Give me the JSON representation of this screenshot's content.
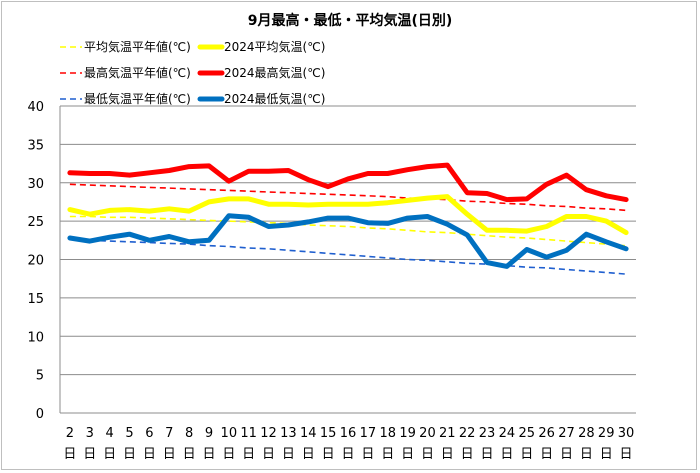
{
  "chart_data": {
    "type": "line",
    "title": "9月最高・最低・平均気温(日別)",
    "xlabel": "",
    "ylabel": "",
    "ylim": [
      0,
      40
    ],
    "yticks": [
      0,
      5,
      10,
      15,
      20,
      25,
      30,
      35,
      40
    ],
    "grid": "horizontal",
    "legend_position": "top-left",
    "day_suffix": "日",
    "categories": [
      "2",
      "3",
      "4",
      "5",
      "6",
      "7",
      "8",
      "9",
      "10",
      "11",
      "12",
      "13",
      "14",
      "15",
      "16",
      "17",
      "18",
      "19",
      "20",
      "21",
      "22",
      "23",
      "24",
      "25",
      "26",
      "27",
      "28",
      "29",
      "30"
    ],
    "series": [
      {
        "name": "平均気温平年値(℃)",
        "color": "#ffff00",
        "style": "dashed",
        "values": [
          25.6,
          25.6,
          25.5,
          25.5,
          25.4,
          25.3,
          25.2,
          25.1,
          25.0,
          24.9,
          24.8,
          24.7,
          24.5,
          24.4,
          24.3,
          24.1,
          24.0,
          23.8,
          23.6,
          23.5,
          23.3,
          23.1,
          22.9,
          22.8,
          22.6,
          22.4,
          22.2,
          22.0,
          21.8
        ]
      },
      {
        "name": "2024平均気温(℃)",
        "color": "#ffff00",
        "style": "solid",
        "values": [
          26.5,
          25.9,
          26.4,
          26.5,
          26.3,
          26.6,
          26.3,
          27.5,
          27.9,
          27.9,
          27.2,
          27.2,
          27.1,
          27.2,
          27.2,
          27.2,
          27.4,
          27.7,
          28.0,
          28.2,
          25.9,
          23.8,
          23.8,
          23.7,
          24.3,
          25.6,
          25.6,
          25.0,
          23.5
        ]
      },
      {
        "name": "最高気温平年値(℃)",
        "color": "#ff0000",
        "style": "dashed",
        "values": [
          29.8,
          29.7,
          29.6,
          29.5,
          29.4,
          29.3,
          29.2,
          29.1,
          29.0,
          28.9,
          28.8,
          28.7,
          28.6,
          28.5,
          28.4,
          28.3,
          28.2,
          28.0,
          27.9,
          27.8,
          27.6,
          27.5,
          27.3,
          27.2,
          27.0,
          26.9,
          26.7,
          26.6,
          26.4
        ]
      },
      {
        "name": "2024最高気温(℃)",
        "color": "#ff0000",
        "style": "solid",
        "values": [
          31.3,
          31.2,
          31.2,
          31.0,
          31.3,
          31.6,
          32.1,
          32.2,
          30.2,
          31.5,
          31.5,
          31.6,
          30.4,
          29.5,
          30.5,
          31.2,
          31.2,
          31.7,
          32.1,
          32.3,
          28.7,
          28.6,
          27.8,
          27.9,
          29.8,
          31.0,
          29.1,
          28.3,
          27.8
        ]
      },
      {
        "name": "最低気温平年値(℃)",
        "color": "#1f5fcf",
        "style": "dashed",
        "values": [
          22.6,
          22.5,
          22.4,
          22.3,
          22.2,
          22.1,
          22.0,
          21.8,
          21.7,
          21.5,
          21.4,
          21.2,
          21.0,
          20.8,
          20.6,
          20.4,
          20.2,
          20.0,
          19.9,
          19.7,
          19.5,
          19.4,
          19.2,
          19.0,
          18.9,
          18.7,
          18.5,
          18.3,
          18.1
        ]
      },
      {
        "name": "2024最低気温(℃)",
        "color": "#0070c0",
        "style": "solid",
        "values": [
          22.8,
          22.4,
          22.9,
          23.3,
          22.5,
          23.0,
          22.3,
          22.5,
          25.7,
          25.5,
          24.3,
          24.5,
          24.9,
          25.4,
          25.4,
          24.8,
          24.7,
          25.4,
          25.6,
          24.6,
          23.2,
          19.6,
          19.1,
          21.3,
          20.3,
          21.2,
          23.3,
          22.3,
          21.4
        ]
      }
    ]
  }
}
